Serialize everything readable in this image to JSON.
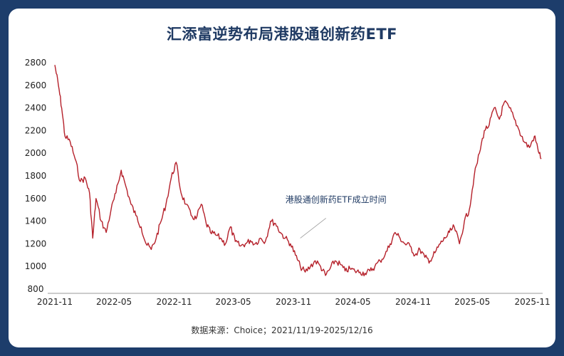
{
  "page": {
    "bg": "#1d3d6b",
    "card_bg": "#ffffff"
  },
  "chart_data": {
    "type": "line",
    "title": "汇添富逆势布局港股通创新药ETF",
    "source": "数据来源：Choice；2021/11/19-2025/12/16",
    "xlabel": "",
    "ylabel": "",
    "xlim": [
      "2021-11",
      "2025-12"
    ],
    "ylim": [
      800,
      2800
    ],
    "yticks": [
      800,
      1000,
      1200,
      1400,
      1600,
      1800,
      2000,
      2200,
      2400,
      2600,
      2800
    ],
    "xticks": [
      "2021-11",
      "2022-05",
      "2022-11",
      "2023-05",
      "2023-11",
      "2024-05",
      "2024-11",
      "2025-05",
      "2025-11"
    ],
    "grid": false,
    "legend": "none",
    "line_color": "#b5202a",
    "annotation": {
      "text": "港股通创新药ETF成立时间",
      "date": "2023-12"
    },
    "series": [
      {
        "x": [
          "2021-11-19",
          "2021-11-30",
          "2021-12-10",
          "2021-12-20",
          "2022-01-05",
          "2022-01-20",
          "2022-02-05",
          "2022-02-20",
          "2022-03-05",
          "2022-03-15",
          "2022-03-25",
          "2022-04-10",
          "2022-04-25",
          "2022-05-10",
          "2022-05-25",
          "2022-06-10",
          "2022-06-25",
          "2022-07-10",
          "2022-07-25",
          "2022-08-10",
          "2022-08-25",
          "2022-09-10",
          "2022-09-25",
          "2022-10-10",
          "2022-10-25",
          "2022-11-10",
          "2022-11-25",
          "2022-12-10",
          "2022-12-25",
          "2023-01-10",
          "2023-01-25",
          "2023-02-10",
          "2023-02-25",
          "2023-03-10",
          "2023-03-25",
          "2023-04-10",
          "2023-04-25",
          "2023-05-10",
          "2023-05-25",
          "2023-06-10",
          "2023-06-25",
          "2023-07-10",
          "2023-07-25",
          "2023-08-10",
          "2023-08-25",
          "2023-09-10",
          "2023-09-25",
          "2023-10-10",
          "2023-10-25",
          "2023-11-10",
          "2023-11-25",
          "2023-12-10",
          "2023-12-25",
          "2024-01-10",
          "2024-01-25",
          "2024-02-10",
          "2024-02-25",
          "2024-03-10",
          "2024-03-25",
          "2024-04-10",
          "2024-04-25",
          "2024-05-10",
          "2024-05-25",
          "2024-06-10",
          "2024-06-25",
          "2024-07-10",
          "2024-07-25",
          "2024-08-10",
          "2024-08-25",
          "2024-09-10",
          "2024-09-25",
          "2024-10-10",
          "2024-10-25",
          "2024-11-10",
          "2024-11-25",
          "2024-12-10",
          "2024-12-25",
          "2025-01-10",
          "2025-01-25",
          "2025-02-10",
          "2025-02-25",
          "2025-03-10",
          "2025-03-25",
          "2025-04-10",
          "2025-04-25",
          "2025-05-10",
          "2025-05-25",
          "2025-06-10",
          "2025-06-25",
          "2025-07-10",
          "2025-07-25",
          "2025-08-10",
          "2025-08-25",
          "2025-09-10",
          "2025-09-25",
          "2025-10-10",
          "2025-10-25",
          "2025-11-10",
          "2025-11-25",
          "2025-12-05",
          "2025-12-16"
        ],
        "values": [
          2780,
          2600,
          2400,
          2150,
          2100,
          1950,
          1750,
          1780,
          1650,
          1250,
          1600,
          1400,
          1300,
          1500,
          1650,
          1850,
          1700,
          1550,
          1450,
          1350,
          1200,
          1150,
          1250,
          1400,
          1550,
          1780,
          1920,
          1650,
          1550,
          1450,
          1420,
          1550,
          1380,
          1300,
          1280,
          1250,
          1200,
          1350,
          1220,
          1180,
          1200,
          1230,
          1200,
          1250,
          1220,
          1400,
          1380,
          1300,
          1250,
          1200,
          1100,
          1000,
          950,
          1000,
          1050,
          1000,
          920,
          980,
          1050,
          1020,
          960,
          980,
          960,
          950,
          940,
          960,
          1000,
          1050,
          1100,
          1200,
          1300,
          1250,
          1200,
          1180,
          1100,
          1150,
          1080,
          1050,
          1120,
          1200,
          1250,
          1300,
          1350,
          1200,
          1400,
          1500,
          1800,
          2000,
          2200,
          2250,
          2400,
          2300,
          2450,
          2400,
          2300,
          2200,
          2100,
          2050,
          2150,
          2050,
          1950
        ]
      }
    ]
  }
}
